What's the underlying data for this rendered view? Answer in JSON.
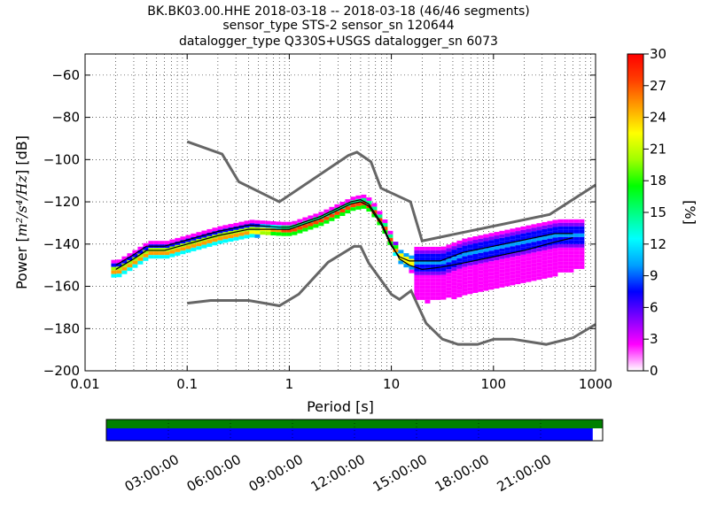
{
  "title": {
    "line1": "BK.BK03.00.HHE   2018-03-18 -- 2018-03-18  (46/46 segments)",
    "line2": "sensor_type STS-2 sensor_sn 120644",
    "line3": "datalogger_type Q330S+USGS datalogger_sn 6073"
  },
  "chart_data": {
    "type": "heatmap",
    "xlabel": "Period [s]",
    "ylabel_prefix": "Power [",
    "ylabel_math": "m²/s⁴/Hz",
    "ylabel_suffix": "] [dB]",
    "x_scale": "log",
    "xlim": [
      0.01,
      1000
    ],
    "ylim": [
      -200,
      -50
    ],
    "x_ticks": [
      0.01,
      0.1,
      1,
      10,
      100,
      1000
    ],
    "x_tick_labels": [
      "0.01",
      "0.1",
      "1",
      "10",
      "100",
      "1000"
    ],
    "y_ticks": [
      -200,
      -180,
      -160,
      -140,
      -120,
      -100,
      -80,
      -60
    ],
    "y_tick_labels": [
      "−200",
      "−180",
      "−160",
      "−140",
      "−120",
      "−100",
      "−80",
      "−60"
    ],
    "grid": true,
    "colorbar": {
      "label": "[%]",
      "min": 0,
      "max": 30,
      "ticks": [
        0,
        3,
        6,
        9,
        12,
        15,
        18,
        21,
        24,
        27,
        30
      ],
      "tick_labels": [
        "0",
        "3",
        "6",
        "9",
        "12",
        "15",
        "18",
        "21",
        "24",
        "27",
        "30"
      ],
      "colors": [
        "#ffffff",
        "#ff00ff",
        "#8000ff",
        "#0000ff",
        "#00a0ff",
        "#00ffff",
        "#00ff80",
        "#00ff00",
        "#a0ff00",
        "#ffff00",
        "#ffa000",
        "#ff4000",
        "#ff0000"
      ]
    },
    "noise_models": [
      {
        "name": "NHNM",
        "period": [
          0.1,
          0.22,
          0.32,
          0.8,
          3.8,
          4.6,
          6.3,
          7.9,
          15.4,
          20,
          354.8,
          1000
        ],
        "db": [
          -91.5,
          -97.4,
          -110.5,
          -120,
          -98,
          -96.5,
          -101,
          -113.5,
          -120,
          -138.5,
          -126,
          -112
        ]
      },
      {
        "name": "NLNM",
        "period": [
          0.1,
          0.17,
          0.4,
          0.8,
          1.24,
          2.4,
          4.3,
          5,
          6,
          10,
          12,
          15.6,
          21.9,
          31.6,
          45,
          70,
          101,
          154,
          328,
          600,
          1000
        ],
        "db": [
          -168,
          -166.7,
          -166.7,
          -169.2,
          -163.7,
          -148.6,
          -141.1,
          -141.1,
          -149,
          -163.8,
          -166.2,
          -162.1,
          -177.5,
          -185,
          -187.5,
          -187.5,
          -185,
          -185,
          -187.5,
          -184.4,
          -178
        ]
      }
    ],
    "mode_curve": {
      "period": [
        0.02,
        0.03,
        0.04,
        0.06,
        0.1,
        0.2,
        0.4,
        0.8,
        1,
        2,
        4,
        5,
        6,
        8,
        10,
        12,
        15,
        20,
        30,
        50,
        100,
        200,
        400,
        600
      ],
      "db": [
        -152,
        -147,
        -143,
        -143,
        -140,
        -136,
        -133,
        -133,
        -133,
        -128,
        -121,
        -120,
        -122,
        -131,
        -141,
        -146,
        -148,
        -148,
        -148,
        -144,
        -141,
        -138,
        -135,
        -135
      ]
    },
    "mean_curve": {
      "period": [
        0.02,
        0.03,
        0.04,
        0.06,
        0.1,
        0.2,
        0.4,
        0.8,
        1,
        2,
        4,
        5,
        6,
        8,
        10,
        12,
        15,
        20,
        30,
        50,
        100,
        200,
        400,
        600
      ],
      "db": [
        -150,
        -145,
        -141,
        -141,
        -138,
        -134,
        -131,
        -132,
        -132,
        -127,
        -120,
        -119,
        -121,
        -130,
        -140,
        -147,
        -150,
        -152,
        -151,
        -149,
        -146,
        -143,
        -139,
        -137
      ]
    },
    "timeline": {
      "tick_labels": [
        "03:00:00",
        "06:00:00",
        "09:00:00",
        "12:00:00",
        "15:00:00",
        "18:00:00",
        "21:00:00"
      ],
      "tick_hours": [
        3,
        6,
        9,
        12,
        15,
        18,
        21
      ],
      "data_coverage_fraction": 0.98,
      "colors": {
        "segments": "#008000",
        "gaps": "#0000ff"
      }
    }
  }
}
